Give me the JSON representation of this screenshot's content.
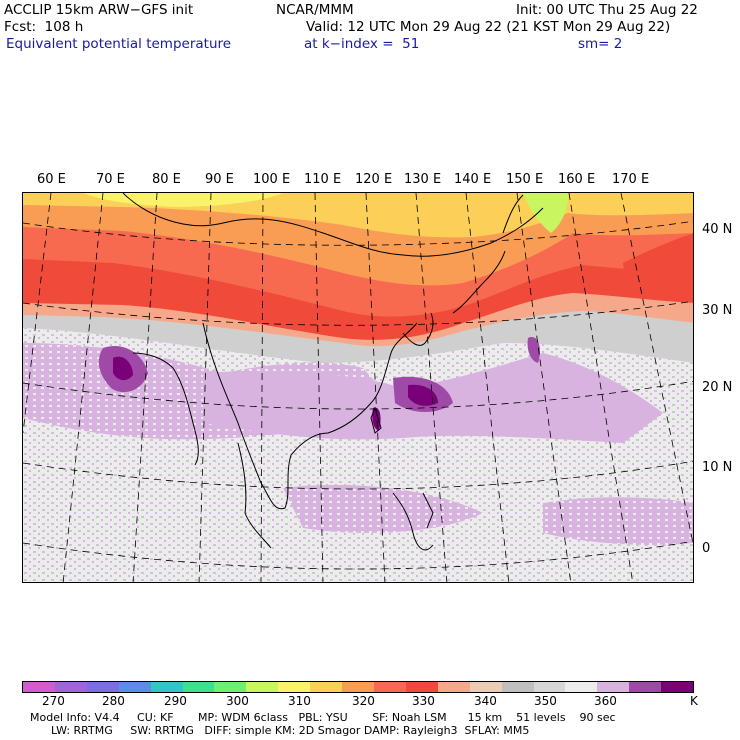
{
  "header": {
    "model": "ACCLIP 15km ARW−GFS init",
    "center": "NCAR/MMM",
    "init": "Init: 00 UTC Thu 25 Aug 22",
    "forecast": "Fcst:  108 h",
    "valid": "Valid: 12 UTC Mon 29 Aug 22 (21 KST Mon 29 Aug 22)",
    "field": "Equivalent potential temperature",
    "level": "at k−index =  51",
    "smoothing": "sm= 2"
  },
  "map": {
    "longitude_labels": [
      "60 E",
      "70 E",
      "80 E",
      "90 E",
      "100 E",
      "110 E",
      "120 E",
      "130 E",
      "140 E",
      "150 E",
      "160 E",
      "170 E"
    ],
    "latitude_labels": [
      "40 N",
      "30 N",
      "20 N",
      "10 N",
      "0"
    ]
  },
  "colorbar": {
    "unit": "K",
    "tick_labels": [
      "270",
      "280",
      "290",
      "300",
      "310",
      "320",
      "330",
      "340",
      "350",
      "360"
    ],
    "colors": [
      "#d25bd2",
      "#a065d8",
      "#7b6fe0",
      "#5a8ce8",
      "#33c3c8",
      "#3fe08c",
      "#6fef6f",
      "#c8f560",
      "#f9f26a",
      "#fbcf58",
      "#f99d55",
      "#f76a4f",
      "#f04a3a",
      "#f5a98a",
      "#ecccb4",
      "#bfbfbf",
      "#d6d6d6",
      "#ececec",
      "#d9b3e0",
      "#a04aa8",
      "#7a007a"
    ]
  },
  "footer": {
    "line1": "Model Info: V4.4     CU: KF       MP: WDM 6class   PBL: YSU       SF: Noah LSM      15 km    51 levels    90 sec",
    "line2": "      LW: RRTMG     SW: RRTMG   DIFF: simple KM: 2D Smagor DAMP: Rayleigh3  SFLAY: MM5"
  }
}
